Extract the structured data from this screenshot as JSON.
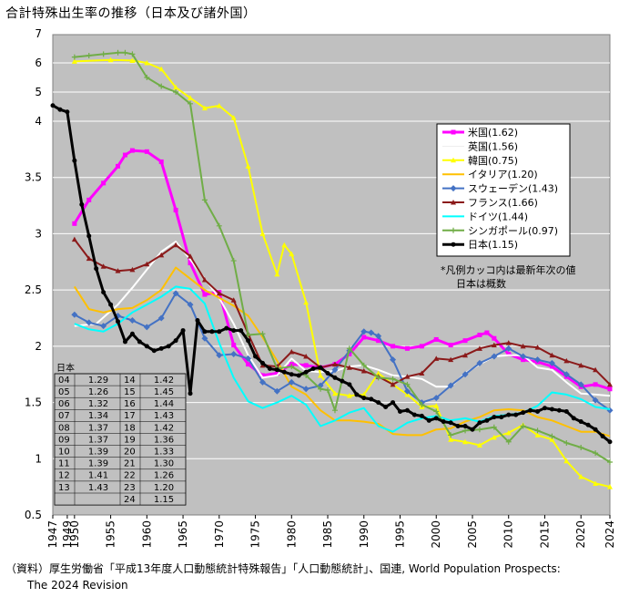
{
  "title": "合計特殊出生率の推移（日本及び諸外国）",
  "source": [
    "（資料）厚生労働省「平成13年度人口動態統計特殊報告」「人口動態統計」、国連, World Population Prospects:",
    "The 2024 Revision"
  ],
  "chart_data": {
    "type": "line",
    "ylim": [
      0.5,
      7
    ],
    "y_ticks": [
      "0.5",
      "1",
      "1.5",
      "2",
      "2.5",
      "3",
      "3.5",
      "4",
      "5",
      "6",
      "7"
    ],
    "x_ticks": [
      "1947",
      "1949",
      "1950",
      "1955",
      "1960",
      "1965",
      "1970",
      "1975",
      "1980",
      "1985",
      "1990",
      "1995",
      "2000",
      "2005",
      "2010",
      "2015",
      "2020",
      "2024"
    ],
    "background": "#c0c0c0",
    "legend_note": [
      "*凡例カッコ内は最新年次の値",
      "日本は概数"
    ],
    "series": [
      {
        "name": "米国",
        "value_label": "(1.62)",
        "color": "#ff00ff",
        "marker": "square",
        "x": [
          1950,
          1952,
          1954,
          1956,
          1957,
          1958,
          1960,
          1962,
          1964,
          1966,
          1968,
          1970,
          1972,
          1974,
          1976,
          1978,
          1980,
          1982,
          1984,
          1986,
          1988,
          1990,
          1992,
          1994,
          1996,
          1998,
          2000,
          2002,
          2004,
          2006,
          2007,
          2008,
          2010,
          2012,
          2014,
          2016,
          2018,
          2020,
          2022,
          2024
        ],
        "y": [
          3.09,
          3.3,
          3.45,
          3.6,
          3.7,
          3.74,
          3.73,
          3.64,
          3.21,
          2.74,
          2.46,
          2.48,
          2.01,
          1.84,
          1.74,
          1.76,
          1.84,
          1.83,
          1.81,
          1.84,
          1.93,
          2.08,
          2.05,
          2.0,
          1.98,
          2.0,
          2.06,
          2.01,
          2.05,
          2.1,
          2.12,
          2.07,
          1.93,
          1.88,
          1.86,
          1.82,
          1.73,
          1.64,
          1.66,
          1.62
        ]
      },
      {
        "name": "英国",
        "value_label": "(1.56)",
        "color": "#ffffff",
        "marker": "none",
        "x": [
          1950,
          1953,
          1956,
          1958,
          1960,
          1962,
          1964,
          1966,
          1968,
          1970,
          1972,
          1974,
          1976,
          1978,
          1980,
          1982,
          1984,
          1986,
          1988,
          1990,
          1992,
          1994,
          1996,
          1998,
          2000,
          2002,
          2004,
          2006,
          2008,
          2010,
          2012,
          2014,
          2016,
          2018,
          2020,
          2022,
          2024
        ],
        "y": [
          2.18,
          2.2,
          2.37,
          2.52,
          2.68,
          2.84,
          2.93,
          2.77,
          2.6,
          2.43,
          2.2,
          1.92,
          1.72,
          1.74,
          1.89,
          1.78,
          1.77,
          1.78,
          1.82,
          1.83,
          1.79,
          1.74,
          1.73,
          1.71,
          1.64,
          1.64,
          1.76,
          1.84,
          1.91,
          1.92,
          1.92,
          1.81,
          1.79,
          1.68,
          1.58,
          1.57,
          1.56
        ]
      },
      {
        "name": "韓国",
        "value_label": "(0.75)",
        "color": "#ffff00",
        "marker": "triangle",
        "x": [
          1950,
          1955,
          1958,
          1960,
          1962,
          1964,
          1966,
          1968,
          1970,
          1972,
          1974,
          1976,
          1978,
          1979,
          1980,
          1982,
          1984,
          1986,
          1988,
          1990,
          1992,
          1994,
          1996,
          1998,
          2000,
          2002,
          2004,
          2006,
          2008,
          2010,
          2012,
          2014,
          2016,
          2018,
          2020,
          2022,
          2024
        ],
        "y": [
          6.05,
          6.1,
          6.08,
          6.0,
          5.79,
          5.16,
          4.8,
          4.45,
          4.53,
          4.12,
          3.6,
          3.0,
          2.64,
          2.9,
          2.82,
          2.39,
          1.74,
          1.58,
          1.56,
          1.57,
          1.76,
          1.66,
          1.57,
          1.46,
          1.47,
          1.17,
          1.15,
          1.12,
          1.19,
          1.23,
          1.3,
          1.21,
          1.17,
          0.98,
          0.84,
          0.78,
          0.75
        ]
      },
      {
        "name": "イタリア",
        "value_label": "(1.20)",
        "color": "#ffc000",
        "marker": "none",
        "x": [
          1950,
          1952,
          1954,
          1956,
          1958,
          1960,
          1962,
          1964,
          1966,
          1968,
          1970,
          1972,
          1974,
          1976,
          1978,
          1980,
          1982,
          1984,
          1986,
          1988,
          1990,
          1992,
          1994,
          1996,
          1998,
          2000,
          2002,
          2004,
          2006,
          2008,
          2010,
          2012,
          2014,
          2016,
          2018,
          2020,
          2022,
          2024
        ],
        "y": [
          2.53,
          2.33,
          2.3,
          2.33,
          2.34,
          2.41,
          2.5,
          2.7,
          2.6,
          2.5,
          2.43,
          2.36,
          2.27,
          2.08,
          1.87,
          1.64,
          1.57,
          1.43,
          1.34,
          1.34,
          1.33,
          1.31,
          1.22,
          1.21,
          1.21,
          1.26,
          1.27,
          1.33,
          1.37,
          1.43,
          1.44,
          1.43,
          1.37,
          1.34,
          1.29,
          1.24,
          1.24,
          1.2
        ]
      },
      {
        "name": "スウェーデン",
        "value_label": "(1.43)",
        "color": "#4472c4",
        "marker": "diamond",
        "x": [
          1950,
          1952,
          1954,
          1956,
          1958,
          1960,
          1962,
          1964,
          1966,
          1968,
          1970,
          1972,
          1974,
          1976,
          1978,
          1980,
          1982,
          1984,
          1986,
          1988,
          1990,
          1991,
          1992,
          1994,
          1996,
          1998,
          2000,
          2002,
          2004,
          2006,
          2008,
          2010,
          2012,
          2014,
          2016,
          2018,
          2020,
          2022,
          2024
        ],
        "y": [
          2.28,
          2.21,
          2.18,
          2.27,
          2.23,
          2.17,
          2.25,
          2.47,
          2.37,
          2.07,
          1.92,
          1.93,
          1.89,
          1.68,
          1.6,
          1.68,
          1.62,
          1.65,
          1.79,
          1.96,
          2.13,
          2.12,
          2.09,
          1.88,
          1.6,
          1.5,
          1.54,
          1.65,
          1.75,
          1.85,
          1.91,
          1.98,
          1.91,
          1.88,
          1.85,
          1.75,
          1.66,
          1.52,
          1.43
        ]
      },
      {
        "name": "フランス",
        "value_label": "(1.66)",
        "color": "#8b1a1a",
        "marker": "triangle",
        "x": [
          1950,
          1952,
          1954,
          1956,
          1958,
          1960,
          1962,
          1964,
          1966,
          1968,
          1970,
          1972,
          1974,
          1976,
          1978,
          1980,
          1982,
          1984,
          1986,
          1988,
          1990,
          1992,
          1994,
          1996,
          1998,
          2000,
          2002,
          2004,
          2006,
          2008,
          2010,
          2012,
          2014,
          2016,
          2018,
          2020,
          2022,
          2024
        ],
        "y": [
          2.95,
          2.78,
          2.71,
          2.67,
          2.68,
          2.73,
          2.81,
          2.9,
          2.8,
          2.59,
          2.47,
          2.41,
          2.11,
          1.83,
          1.82,
          1.95,
          1.91,
          1.81,
          1.84,
          1.81,
          1.78,
          1.73,
          1.66,
          1.73,
          1.76,
          1.89,
          1.88,
          1.92,
          1.98,
          2.01,
          2.03,
          2.0,
          1.99,
          1.92,
          1.87,
          1.83,
          1.79,
          1.66
        ]
      },
      {
        "name": "ドイツ",
        "value_label": "(1.44)",
        "color": "#00ffff",
        "marker": "none",
        "x": [
          1950,
          1952,
          1954,
          1956,
          1958,
          1960,
          1962,
          1964,
          1966,
          1968,
          1970,
          1972,
          1974,
          1976,
          1978,
          1980,
          1982,
          1984,
          1986,
          1988,
          1990,
          1992,
          1994,
          1996,
          1998,
          2000,
          2002,
          2004,
          2006,
          2008,
          2010,
          2012,
          2014,
          2016,
          2018,
          2020,
          2022,
          2024
        ],
        "y": [
          2.2,
          2.15,
          2.13,
          2.2,
          2.3,
          2.37,
          2.44,
          2.53,
          2.51,
          2.38,
          2.03,
          1.72,
          1.51,
          1.45,
          1.5,
          1.56,
          1.48,
          1.29,
          1.34,
          1.41,
          1.45,
          1.29,
          1.24,
          1.32,
          1.36,
          1.38,
          1.34,
          1.36,
          1.33,
          1.38,
          1.39,
          1.41,
          1.47,
          1.59,
          1.57,
          1.53,
          1.46,
          1.44
        ]
      },
      {
        "name": "シンガポール",
        "value_label": "(0.97)",
        "color": "#70ad47",
        "marker": "plus",
        "x": [
          1950,
          1952,
          1954,
          1956,
          1957,
          1958,
          1960,
          1962,
          1964,
          1966,
          1968,
          1970,
          1972,
          1974,
          1976,
          1978,
          1980,
          1982,
          1984,
          1985,
          1986,
          1988,
          1990,
          1992,
          1994,
          1996,
          1998,
          2000,
          2002,
          2004,
          2006,
          2008,
          2010,
          2012,
          2014,
          2016,
          2018,
          2020,
          2022,
          2024
        ],
        "y": [
          6.2,
          6.25,
          6.3,
          6.35,
          6.35,
          6.3,
          5.5,
          5.2,
          5.0,
          4.6,
          3.3,
          3.07,
          2.76,
          2.1,
          2.11,
          1.8,
          1.82,
          1.74,
          1.62,
          1.61,
          1.43,
          1.98,
          1.83,
          1.72,
          1.71,
          1.66,
          1.48,
          1.42,
          1.21,
          1.25,
          1.26,
          1.28,
          1.15,
          1.29,
          1.25,
          1.2,
          1.14,
          1.1,
          1.05,
          0.97
        ]
      },
      {
        "name": "日本",
        "value_label": "(1.15)",
        "color": "#000000",
        "marker": "circle",
        "x": [
          1947,
          1948,
          1949,
          1950,
          1951,
          1952,
          1953,
          1954,
          1955,
          1956,
          1957,
          1958,
          1959,
          1960,
          1961,
          1962,
          1963,
          1964,
          1965,
          1966,
          1967,
          1968,
          1969,
          1970,
          1971,
          1972,
          1973,
          1974,
          1975,
          1976,
          1977,
          1978,
          1979,
          1980,
          1981,
          1982,
          1983,
          1984,
          1985,
          1986,
          1987,
          1988,
          1989,
          1990,
          1991,
          1992,
          1993,
          1994,
          1995,
          1996,
          1997,
          1998,
          1999,
          2000,
          2001,
          2002,
          2003,
          2004,
          2005,
          2006,
          2007,
          2008,
          2009,
          2010,
          2011,
          2012,
          2013,
          2014,
          2015,
          2016,
          2017,
          2018,
          2019,
          2020,
          2021,
          2022,
          2023,
          2024
        ],
        "y": [
          4.54,
          4.4,
          4.32,
          3.65,
          3.26,
          2.98,
          2.69,
          2.48,
          2.37,
          2.22,
          2.04,
          2.11,
          2.04,
          2.0,
          1.96,
          1.98,
          2.0,
          2.05,
          2.14,
          1.58,
          2.23,
          2.13,
          2.13,
          2.13,
          2.16,
          2.14,
          2.14,
          2.05,
          1.91,
          1.85,
          1.8,
          1.79,
          1.77,
          1.75,
          1.74,
          1.77,
          1.8,
          1.81,
          1.76,
          1.72,
          1.69,
          1.66,
          1.57,
          1.54,
          1.53,
          1.5,
          1.46,
          1.5,
          1.42,
          1.43,
          1.39,
          1.38,
          1.34,
          1.36,
          1.33,
          1.32,
          1.29,
          1.29,
          1.26,
          1.32,
          1.34,
          1.37,
          1.37,
          1.39,
          1.39,
          1.41,
          1.43,
          1.42,
          1.45,
          1.44,
          1.43,
          1.42,
          1.36,
          1.33,
          1.3,
          1.26,
          1.2,
          1.15
        ]
      }
    ]
  },
  "japan_table": {
    "header": "日本",
    "rows": [
      [
        "04",
        "1.29",
        "14",
        "1.42"
      ],
      [
        "05",
        "1.26",
        "15",
        "1.45"
      ],
      [
        "06",
        "1.32",
        "16",
        "1.44"
      ],
      [
        "07",
        "1.34",
        "17",
        "1.43"
      ],
      [
        "08",
        "1.37",
        "18",
        "1.42"
      ],
      [
        "09",
        "1.37",
        "19",
        "1.36"
      ],
      [
        "10",
        "1.39",
        "20",
        "1.33"
      ],
      [
        "11",
        "1.39",
        "21",
        "1.30"
      ],
      [
        "12",
        "1.41",
        "22",
        "1.26"
      ],
      [
        "13",
        "1.43",
        "23",
        "1.20"
      ],
      [
        "",
        "",
        "24",
        "1.15"
      ]
    ]
  }
}
